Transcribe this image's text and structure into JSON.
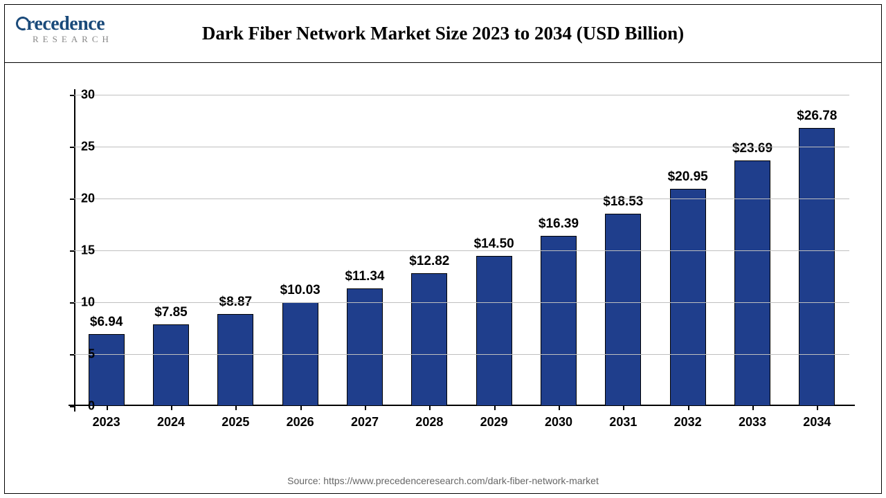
{
  "header": {
    "logo_main": "recedence",
    "logo_sub": "RESEARCH",
    "title": "Dark Fiber Network Market Size 2023 to 2034 (USD Billion)"
  },
  "chart": {
    "type": "bar",
    "ylim": [
      0,
      30
    ],
    "ytick_step": 5,
    "yticks": [
      0,
      5,
      10,
      15,
      20,
      25,
      30
    ],
    "categories": [
      "2023",
      "2024",
      "2025",
      "2026",
      "2027",
      "2028",
      "2029",
      "2030",
      "2031",
      "2032",
      "2033",
      "2034"
    ],
    "values": [
      6.94,
      7.85,
      8.87,
      10.03,
      11.34,
      12.82,
      14.5,
      16.39,
      18.53,
      20.95,
      23.69,
      26.78
    ],
    "value_labels": [
      "$6.94",
      "$7.85",
      "$8.87",
      "$10.03",
      "$11.34",
      "$12.82",
      "$14.50",
      "$16.39",
      "$18.53",
      "$20.95",
      "$23.69",
      "$26.78"
    ],
    "bar_color": "#1f3e8c",
    "bar_border_color": "#000000",
    "grid_color": "#bfbfbf",
    "axis_color": "#000000",
    "background_color": "#ffffff",
    "bar_width_ratio": 0.56,
    "title_fontsize": 27,
    "tick_fontsize": 18,
    "label_fontsize": 19
  },
  "footer": {
    "source": "Source: https://www.precedenceresearch.com/dark-fiber-network-market"
  }
}
